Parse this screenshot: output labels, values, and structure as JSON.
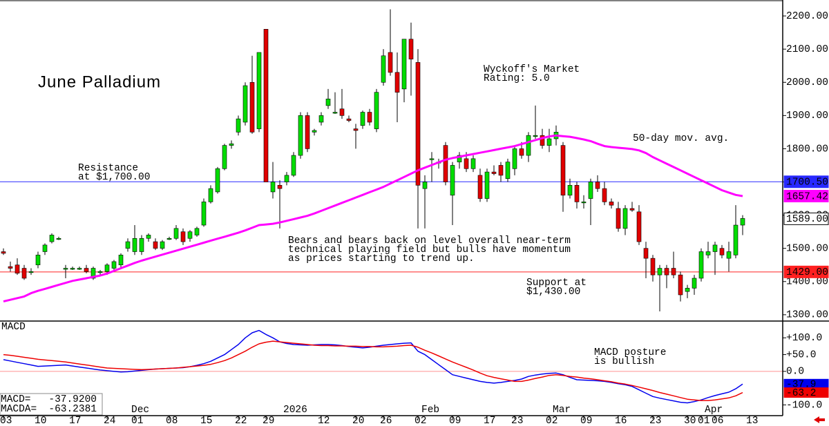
{
  "chart_data": {
    "type": "candlestick",
    "title": "June Palladium",
    "categories": [
      "03",
      null,
      null,
      null,
      null,
      "10",
      null,
      null,
      null,
      null,
      "17",
      null,
      null,
      null,
      null,
      "24",
      null,
      null,
      null,
      "01",
      null,
      null,
      null,
      null,
      "08",
      null,
      null,
      null,
      null,
      "15",
      null,
      null,
      null,
      null,
      "22",
      null,
      null,
      null,
      "29",
      null,
      null,
      null,
      null,
      null,
      null,
      null,
      "12",
      null,
      null,
      null,
      null,
      "20",
      null,
      null,
      null,
      "26",
      null,
      null,
      null,
      null,
      "02",
      null,
      null,
      null,
      null,
      "09",
      null,
      null,
      null,
      null,
      "17",
      null,
      null,
      null,
      "23",
      null,
      null,
      null,
      null,
      "02",
      null,
      null,
      null,
      null,
      "09",
      null,
      null,
      null,
      null,
      "16",
      null,
      null,
      null,
      null,
      "23",
      null,
      null,
      null,
      null,
      "30",
      null,
      "01",
      null,
      "06",
      null,
      null,
      null,
      null,
      "13"
    ],
    "months": [
      null,
      null,
      null,
      null,
      null,
      null,
      null,
      null,
      null,
      null,
      null,
      null,
      null,
      null,
      null,
      null,
      null,
      null,
      null,
      "Dec",
      null,
      null,
      null,
      null,
      null,
      null,
      null,
      null,
      null,
      null,
      null,
      null,
      null,
      null,
      null,
      null,
      null,
      null,
      null,
      null,
      null,
      "2026",
      null,
      null,
      null,
      null,
      null,
      null,
      null,
      null,
      null,
      null,
      null,
      null,
      null,
      null,
      null,
      null,
      null,
      null,
      null,
      "Feb",
      null,
      null,
      null,
      null,
      null,
      null,
      null,
      null,
      null,
      null,
      null,
      null,
      null,
      null,
      null,
      null,
      null,
      null,
      "Mar",
      null,
      null,
      null,
      null,
      null,
      null,
      null,
      null,
      null,
      null,
      null,
      null,
      null,
      null,
      null,
      null,
      null,
      null,
      null,
      null,
      null,
      "Apr",
      null,
      null,
      null,
      null,
      null,
      null,
      null
    ],
    "open": [
      1490,
      1445,
      1450,
      1440,
      1430,
      1450,
      1490,
      1520,
      1530,
      1440,
      1440,
      1440,
      1440,
      1410,
      1430,
      1430,
      1440,
      1450,
      1500,
      1490,
      1490,
      1530,
      1520,
      1500,
      1530,
      1530,
      1550,
      1530,
      1540,
      1570,
      1640,
      1670,
      1740,
      1810,
      1850,
      1880,
      2000,
      1860,
      2160,
      1670,
      1690,
      1700,
      1720,
      1780,
      1900,
      1850,
      1880,
      1930,
      1910,
      1920,
      1890,
      1860,
      1870,
      1910,
      1860,
      2000,
      2090,
      2030,
      1980,
      2130,
      2060,
      1680,
      1770,
      1760,
      1810,
      1660,
      1760,
      1770,
      1740,
      1720,
      1650,
      1730,
      1750,
      1710,
      1740,
      1800,
      1780,
      1840,
      1840,
      1810,
      1830,
      1810,
      1660,
      1690,
      1640,
      1650,
      1700,
      1680,
      1640,
      1620,
      1560,
      1620,
      1610,
      1500,
      1470,
      1420,
      1440,
      1440,
      1420,
      1370,
      1380,
      1410,
      1480,
      1490,
      1500,
      1470,
      1480,
      1570,
      null,
      null
    ],
    "high": [
      1500,
      1460,
      1470,
      1450,
      1440,
      1490,
      1515,
      1545,
      1535,
      1450,
      1445,
      1445,
      1450,
      1445,
      1435,
      1455,
      1465,
      1485,
      1530,
      1570,
      1540,
      1545,
      1530,
      1525,
      1535,
      1570,
      1560,
      1555,
      1565,
      1650,
      1690,
      1745,
      1815,
      1825,
      1900,
      2000,
      2080,
      2090,
      2160,
      1760,
      1705,
      1730,
      1790,
      1910,
      1910,
      1860,
      1910,
      1980,
      1970,
      1980,
      1900,
      1875,
      1915,
      1920,
      1980,
      2100,
      2220,
      2090,
      2130,
      2180,
      2100,
      1720,
      1790,
      1770,
      1820,
      1760,
      1790,
      1790,
      1780,
      1740,
      1740,
      1750,
      1760,
      1770,
      1810,
      1820,
      1850,
      1930,
      1860,
      1860,
      1870,
      1820,
      1710,
      1700,
      1660,
      1710,
      1720,
      1700,
      1650,
      1640,
      1630,
      1640,
      1630,
      1520,
      1480,
      1450,
      1450,
      1490,
      1430,
      1390,
      1420,
      1500,
      1520,
      1520,
      1510,
      1520,
      1630,
      1600,
      null,
      null
    ],
    "low": [
      1480,
      1430,
      1420,
      1405,
      1420,
      1440,
      1480,
      1515,
      1525,
      1410,
      1435,
      1435,
      1425,
      1405,
      1420,
      1420,
      1430,
      1440,
      1490,
      1480,
      1480,
      1520,
      1495,
      1495,
      1525,
      1525,
      1510,
      1520,
      1535,
      1565,
      1635,
      1665,
      1735,
      1800,
      1840,
      1870,
      1845,
      1850,
      1700,
      1650,
      1560,
      1690,
      1715,
      1770,
      1790,
      1840,
      1870,
      1920,
      1905,
      1890,
      1880,
      1800,
      1860,
      1870,
      1850,
      1990,
      2020,
      1880,
      1940,
      1960,
      1560,
      1560,
      1700,
      1740,
      1690,
      1570,
      1740,
      1730,
      1730,
      1640,
      1640,
      1720,
      1700,
      1700,
      1720,
      1770,
      1760,
      1830,
      1800,
      1790,
      1810,
      1610,
      1650,
      1620,
      1620,
      1570,
      1670,
      1630,
      1620,
      1550,
      1540,
      1610,
      1510,
      1410,
      1400,
      1310,
      1380,
      1410,
      1340,
      1350,
      1360,
      1400,
      1470,
      1420,
      1470,
      1430,
      1470,
      1540,
      null,
      null
    ],
    "close": [
      1485,
      1440,
      1425,
      1410,
      1430,
      1480,
      1510,
      1540,
      1530,
      1440,
      1440,
      1440,
      1430,
      1440,
      1430,
      1450,
      1460,
      1480,
      1520,
      1530,
      1530,
      1540,
      1500,
      1520,
      1530,
      1560,
      1520,
      1550,
      1560,
      1640,
      1680,
      1740,
      1810,
      1815,
      1890,
      1990,
      1850,
      2090,
      1700,
      1700,
      1680,
      1720,
      1780,
      1900,
      1800,
      1855,
      1900,
      1950,
      1910,
      1900,
      1885,
      1855,
      1910,
      1880,
      1970,
      2080,
      2030,
      1970,
      2130,
      2070,
      1690,
      1700,
      1770,
      1760,
      1700,
      1750,
      1780,
      1740,
      1770,
      1650,
      1730,
      1725,
      1720,
      1760,
      1800,
      1780,
      1840,
      1840,
      1810,
      1830,
      1850,
      1660,
      1690,
      1640,
      1640,
      1700,
      1680,
      1640,
      1630,
      1560,
      1620,
      1615,
      1520,
      1470,
      1420,
      1440,
      1420,
      1420,
      1360,
      1380,
      1410,
      1490,
      1490,
      1510,
      1480,
      1490,
      1570,
      1590,
      null,
      null
    ],
    "up_color": "#00dd00",
    "down_color": "#e00000",
    "ylim": [
      1281,
      2248
    ],
    "yticks": [
      {
        "value": 1300,
        "label": "1300.00"
      },
      {
        "value": 1400,
        "label": "1400.00"
      },
      {
        "value": 1500,
        "label": "1500.00"
      },
      {
        "value": 1600,
        "label": "1600.00"
      },
      {
        "value": 1700,
        "label": "1700.00"
      },
      {
        "value": 1800,
        "label": "1800.00"
      },
      {
        "value": 1900,
        "label": "1900.00"
      },
      {
        "value": 2000,
        "label": "2000.00"
      },
      {
        "value": 2100,
        "label": "2100.00"
      },
      {
        "value": 2200,
        "label": "2200.00"
      }
    ],
    "ma": {
      "name": "50-day mov. avg.",
      "color": "#ff00ff",
      "values": [
        1340,
        1345,
        1350,
        1355,
        1365,
        1372,
        1378,
        1384,
        1390,
        1396,
        1402,
        1406,
        1410,
        1414,
        1418,
        1424,
        1432,
        1440,
        1448,
        1456,
        1463,
        1469,
        1475,
        1481,
        1487,
        1493,
        1499,
        1505,
        1511,
        1517,
        1523,
        1529,
        1535,
        1541,
        1547,
        1554,
        1562,
        1570,
        1572,
        1574,
        1578,
        1583,
        1588,
        1593,
        1598,
        1605,
        1613,
        1621,
        1629,
        1637,
        1645,
        1653,
        1661,
        1669,
        1677,
        1685,
        1695,
        1705,
        1715,
        1725,
        1735,
        1743,
        1751,
        1759,
        1767,
        1772,
        1776,
        1780,
        1784,
        1788,
        1792,
        1796,
        1800,
        1804,
        1808,
        1814,
        1820,
        1826,
        1832,
        1837,
        1840,
        1838,
        1836,
        1832,
        1828,
        1823,
        1815,
        1808,
        1805,
        1803,
        1801,
        1799,
        1795,
        1787,
        1775,
        1765,
        1755,
        1745,
        1735,
        1725,
        1715,
        1705,
        1695,
        1685,
        1675,
        1668,
        1661,
        1657.42,
        null,
        null
      ]
    },
    "price_labels": [
      {
        "value": 1700.5,
        "label": "1700.50",
        "color": "#2828ff"
      },
      {
        "value": 1657.42,
        "label": "1657.42",
        "color": "#ff00ff"
      },
      {
        "value": 1589,
        "label": "1589.00",
        "color": "#000000"
      },
      {
        "value": 1429,
        "label": "1429.00",
        "color": "#ff2020"
      }
    ],
    "annotations": [
      {
        "lines": [
          "Wyckoff's Market",
          "Rating: 5.0"
        ],
        "color": "#000000"
      },
      {
        "lines": [
          "Resistance",
          "at $1,700.00"
        ],
        "color": "#2828ff"
      },
      {
        "lines": [
          "Bears and bears back on level overall near-term",
          "technical playing field but bulls have momentum",
          "as prices starting to trend up."
        ],
        "color": "#000000"
      },
      {
        "lines": [
          "Support at",
          "$1,430.00"
        ],
        "color": "#ff2020"
      },
      {
        "lines": [
          "MACD posture",
          "is bullish"
        ],
        "color": "#000000"
      }
    ],
    "macd": {
      "title": "MACD",
      "ylim": [
        -132,
        150
      ],
      "yticks": [
        {
          "value": 100,
          "label": "+100.0"
        },
        {
          "value": 50,
          "label": "+50.0"
        },
        {
          "value": 0,
          "label": "0.0"
        },
        {
          "value": -100,
          "label": "-100.0"
        }
      ],
      "series": [
        {
          "color": "#0000ee",
          "values": [
            35,
            31,
            27,
            23,
            19,
            15,
            16,
            17,
            18,
            19,
            16,
            13,
            10,
            7,
            4,
            2,
            0,
            -2,
            -1,
            1,
            3,
            5,
            7,
            8,
            9,
            10,
            11,
            14,
            18,
            23,
            30,
            40,
            50,
            65,
            80,
            100,
            115,
            122,
            110,
            100,
            88,
            83,
            80,
            79,
            78,
            79,
            80,
            80,
            79,
            77,
            74,
            72,
            70,
            72,
            75,
            78,
            80,
            82,
            84,
            85,
            60,
            50,
            35,
            20,
            5,
            -10,
            -15,
            -20,
            -25,
            -30,
            -33,
            -35,
            -33,
            -30,
            -27,
            -23,
            -15,
            -11,
            -8,
            -6,
            -5,
            -10,
            -18,
            -25,
            -26,
            -27,
            -28,
            -30,
            -33,
            -37,
            -40,
            -45,
            -55,
            -65,
            -75,
            -80,
            -84,
            -88,
            -92,
            -94,
            -90,
            -85,
            -78,
            -72,
            -67,
            -62,
            -52,
            -37.92,
            null,
            null
          ]
        },
        {
          "color": "#ee0000",
          "values": [
            50,
            48,
            45,
            42,
            39,
            36,
            34,
            32,
            30,
            28,
            25,
            22,
            19,
            16,
            13,
            10,
            9,
            8,
            7,
            6,
            5,
            6,
            7,
            8,
            9,
            10,
            12,
            14,
            16,
            18,
            21,
            26,
            32,
            40,
            50,
            60,
            72,
            82,
            87,
            90,
            88,
            86,
            84,
            82,
            80,
            78,
            77,
            77,
            76,
            76,
            75,
            75,
            74,
            74,
            73,
            73,
            74,
            75,
            77,
            78,
            72,
            63,
            55,
            46,
            37,
            28,
            20,
            12,
            4,
            -5,
            -13,
            -18,
            -22,
            -26,
            -30,
            -30,
            -26,
            -21,
            -17,
            -12,
            -10,
            -12,
            -15,
            -17,
            -20,
            -22,
            -25,
            -28,
            -31,
            -35,
            -38,
            -42,
            -47,
            -52,
            -57,
            -63,
            -68,
            -73,
            -78,
            -83,
            -85,
            -87,
            -87,
            -85,
            -82,
            -79,
            -73,
            -63.24,
            null,
            null
          ]
        }
      ],
      "value_labels": [
        {
          "value": -37.92,
          "label": "-37.9",
          "color": "#0000ee"
        },
        {
          "value": -63.24,
          "label": "-63.2",
          "color": "#ee0000"
        }
      ],
      "readout": [
        {
          "label": "MACD=",
          "value": "-37.9200"
        },
        {
          "label": "MACDA=",
          "value": "-63.2381"
        }
      ]
    }
  }
}
